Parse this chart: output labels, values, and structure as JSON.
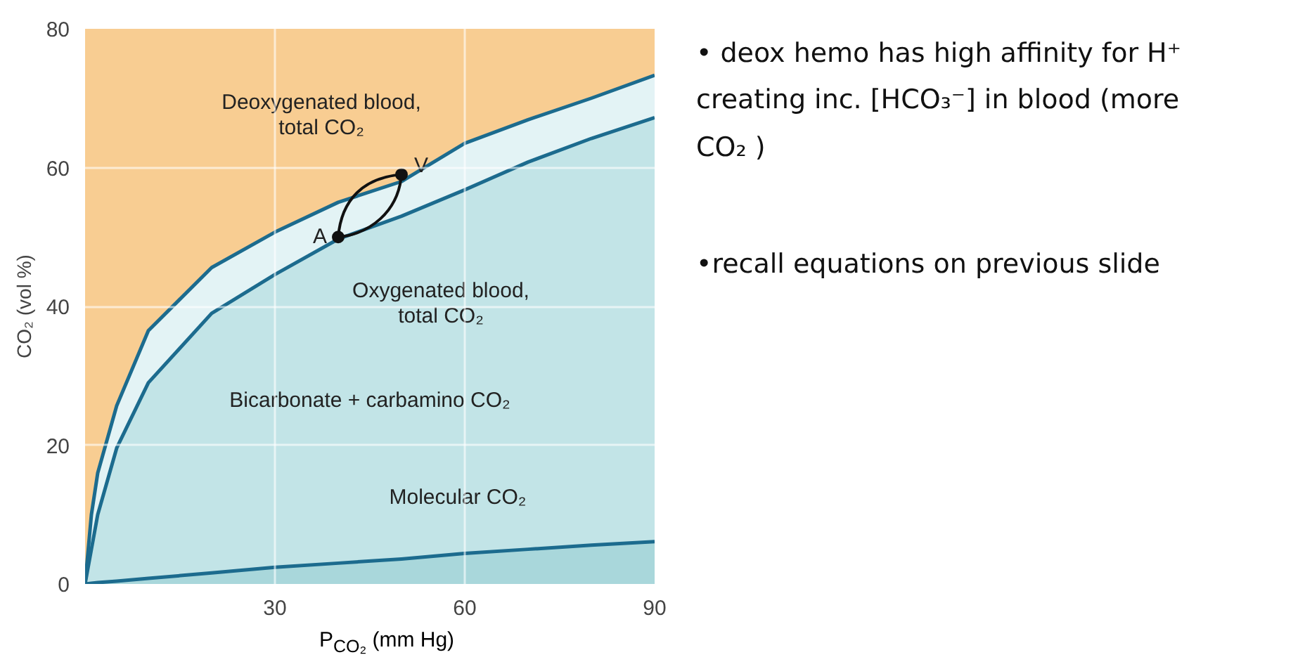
{
  "chart_data": {
    "type": "area",
    "xlabel": "P$_{CO₂}$ (mm Hg)",
    "ylabel": "CO₂ (vol %)",
    "x": [
      0,
      1,
      2,
      5,
      10,
      20,
      30,
      40,
      50,
      60,
      70,
      80,
      90
    ],
    "xlim": [
      0,
      90
    ],
    "ylim": [
      0,
      80
    ],
    "xticks": [
      30,
      60,
      90
    ],
    "yticks": [
      0,
      20,
      40,
      60,
      80
    ],
    "grid": true,
    "bands": [
      {
        "axis": "y",
        "from": 0,
        "to": 80,
        "color": "#f8cd92"
      }
    ],
    "series": [
      {
        "name": "Deoxygenated blood,\ntotal CO₂",
        "color": "#e3f3f5",
        "values": [
          0,
          10,
          16,
          25.7,
          36.5,
          45.6,
          50.7,
          55,
          58,
          63.5,
          66.9,
          70,
          73.3
        ]
      },
      {
        "name": "Oxygenated blood,\ntotal CO₂",
        "color": "#c2e4e7",
        "values": [
          0,
          5,
          10,
          19.6,
          29,
          39,
          44.6,
          49.7,
          53,
          56.8,
          60.8,
          64.2,
          67.2
        ]
      },
      {
        "name": "Molecular CO₂",
        "color": "#a9d7db",
        "values": [
          0,
          0.1,
          0.2,
          0.4,
          0.8,
          1.6,
          2.4,
          3,
          3.6,
          4.4,
          5,
          5.6,
          6.1
        ]
      },
      {
        "type": "scatter",
        "color": "#111111",
        "x": [
          40,
          50
        ],
        "values": [
          50,
          59
        ]
      }
    ],
    "annotations": [
      "Bicarbonate + carbamino CO₂",
      {
        "text": "A",
        "x": 40,
        "y": 50
      },
      {
        "text": "V",
        "x": 50,
        "y": 59
      },
      "• deox hemo has high affinity for H⁺  creating inc. [HCO₃⁻] in blood (more CO₂ )",
      "•recall equations on previous slide"
    ]
  }
}
